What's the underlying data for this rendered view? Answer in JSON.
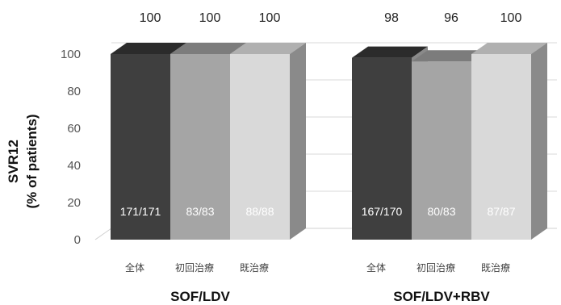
{
  "chart_data": {
    "type": "bar",
    "ylabel_line1": "SVR12",
    "ylabel_line2": "(% of patients)",
    "ylim": [
      0,
      100
    ],
    "yticks": [
      0,
      20,
      40,
      60,
      80,
      100
    ],
    "grid": true,
    "groups": [
      {
        "name": "SOF/LDV",
        "categories": [
          "全体",
          "初回治療",
          "既治療"
        ],
        "values": [
          100,
          100,
          100
        ],
        "labels": [
          "171/171",
          "83/83",
          "88/88"
        ]
      },
      {
        "name": "SOF/LDV+RBV",
        "categories": [
          "全体",
          "初回治療",
          "既治療"
        ],
        "values": [
          98,
          96,
          100
        ],
        "labels": [
          "167/170",
          "80/83",
          "87/87"
        ]
      }
    ],
    "colors": {
      "front": [
        "#3f3f3f",
        "#a5a5a5",
        "#d9d9d9"
      ],
      "top": [
        "#2b2b2b",
        "#7c7c7c",
        "#b0b0b0"
      ],
      "side": "#8a8a8a",
      "label_text": "#ffffff"
    }
  }
}
